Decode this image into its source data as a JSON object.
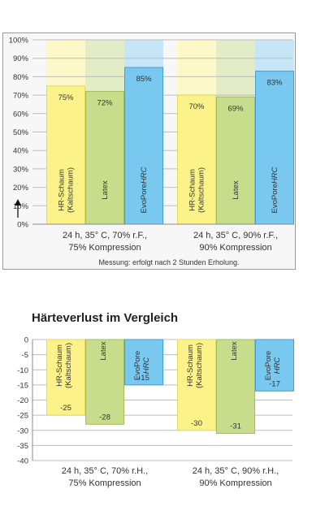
{
  "chart_data": [
    {
      "type": "bar",
      "title": "",
      "ylim": [
        0,
        100
      ],
      "yticks": [
        "0%",
        "10%",
        "20%",
        "30%",
        "40%",
        "50%",
        "60%",
        "70%",
        "80%",
        "90%",
        "100%"
      ],
      "groups": [
        {
          "label": [
            "24 h, 35° C, 70% r.F.,",
            "75% Kompression"
          ],
          "bars": [
            {
              "name": [
                "HR-Schaum",
                "(Kaltschaum)"
              ],
              "value": 75,
              "value_label": "75%",
              "color": "#fbf38a"
            },
            {
              "name": [
                "Latex"
              ],
              "value": 72,
              "value_label": "72%",
              "color": "#c8dd8c"
            },
            {
              "name": [
                "EvoPore",
                "HRC"
              ],
              "value": 85,
              "value_label": "85%",
              "color": "#78c8f0"
            }
          ]
        },
        {
          "label": [
            "24 h, 35° C, 90% r.F.,",
            "90% Kompression"
          ],
          "bars": [
            {
              "name": [
                "HR-Schaum",
                "(Kaltschaum)"
              ],
              "value": 70,
              "value_label": "70%",
              "color": "#fbf38a"
            },
            {
              "name": [
                "Latex"
              ],
              "value": 69,
              "value_label": "69%",
              "color": "#c8dd8c"
            },
            {
              "name": [
                "EvoPore",
                "HRC"
              ],
              "value": 83,
              "value_label": "83%",
              "color": "#78c8f0"
            }
          ]
        }
      ],
      "note": "Messung: erfolgt nach 2 Stunden Erholung."
    },
    {
      "type": "bar",
      "title": "Härteverlust im Vergleich",
      "ylim": [
        -40,
        0
      ],
      "yticks": [
        "0",
        "-5",
        "-10",
        "-15",
        "-20",
        "-25",
        "-30",
        "-35",
        "-40"
      ],
      "groups": [
        {
          "label": [
            "24 h, 35° C, 70% r.H.,",
            "75% Kompression"
          ],
          "bars": [
            {
              "name": [
                "HR-Schaum",
                "(Kaltschaum)"
              ],
              "value": -25,
              "value_label": "-25",
              "color": "#fbf38a"
            },
            {
              "name": [
                "Latex"
              ],
              "value": -28,
              "value_label": "-28",
              "color": "#c8dd8c"
            },
            {
              "name": [
                "EvoPore",
                "HRC"
              ],
              "value": -15,
              "value_label": "-15",
              "color": "#78c8f0"
            }
          ]
        },
        {
          "label": [
            "24 h, 35° C, 90% r.H.,",
            "90% Kompression"
          ],
          "bars": [
            {
              "name": [
                "HR-Schaum",
                "(Kaltschaum)"
              ],
              "value": -30,
              "value_label": "-30",
              "color": "#fbf38a"
            },
            {
              "name": [
                "Latex"
              ],
              "value": -31,
              "value_label": "-31",
              "color": "#c8dd8c"
            },
            {
              "name": [
                "EvoPore",
                "HRC"
              ],
              "value": -17,
              "value_label": "-17",
              "color": "#78c8f0"
            }
          ]
        }
      ]
    }
  ],
  "colors": {
    "yellow_bg": "#fdf8c8",
    "green_bg": "#e2ecc6",
    "blue_bg": "#c6e6f8",
    "grid": "#bdbdbd",
    "bar_stroke_yellow": "#e6d85c",
    "bar_stroke_green": "#9fbf5e",
    "bar_stroke_blue": "#3f9fd8"
  }
}
